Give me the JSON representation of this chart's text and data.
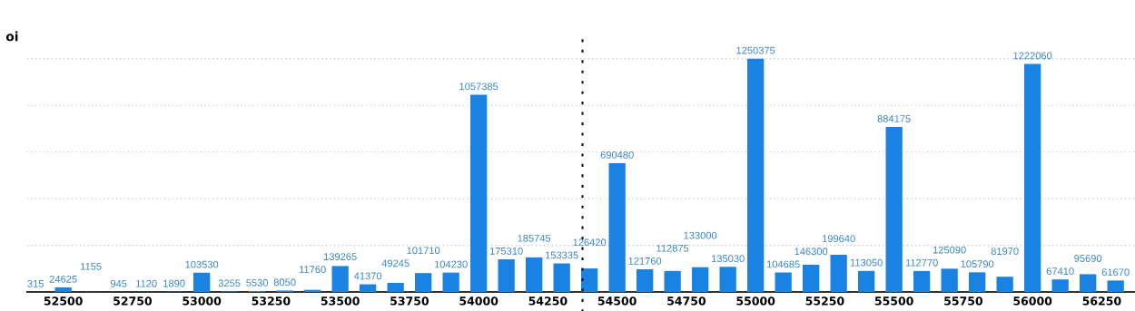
{
  "chart_data": {
    "type": "bar",
    "ylabel": "oi",
    "x": [
      52400,
      52500,
      52600,
      52700,
      52800,
      52900,
      53000,
      53100,
      53200,
      53300,
      53400,
      53500,
      53600,
      53700,
      53800,
      53900,
      54000,
      54100,
      54200,
      54300,
      54400,
      54500,
      54600,
      54700,
      54800,
      54900,
      55000,
      55100,
      55200,
      55300,
      55400,
      55500,
      55600,
      55700,
      55800,
      55900,
      56000,
      56100,
      56200,
      56300
    ],
    "values": [
      315,
      24625,
      1155,
      945,
      1120,
      1890,
      103530,
      3255,
      5530,
      8050,
      11760,
      139265,
      41370,
      49245,
      101710,
      104230,
      1057385,
      175310,
      185745,
      153335,
      126420,
      690480,
      121760,
      112875,
      133000,
      135030,
      1250375,
      104685,
      146300,
      199640,
      113050,
      884175,
      112770,
      125090,
      105790,
      81970,
      1222060,
      67410,
      95690,
      61670
    ],
    "color": "#1a82e2",
    "data_labels": true,
    "xlim": [
      52370,
      56370
    ],
    "xticks": [
      52500,
      52750,
      53000,
      53250,
      53500,
      53750,
      54000,
      54250,
      54500,
      54750,
      55000,
      55250,
      55500,
      55750,
      56000,
      56250
    ],
    "ylim": [
      0,
      1375000
    ],
    "yticks": [
      {
        "value": 250000,
        "label": null
      },
      {
        "value": 500000,
        "label": null
      },
      {
        "value": 750000,
        "label": null
      },
      {
        "value": 1000000,
        "label": null
      },
      {
        "value": 1250000,
        "label": null
      }
    ],
    "tick_labels": "x",
    "grid": "y",
    "legend": false,
    "ref_lines": [
      {
        "axis": "x",
        "value": 54375,
        "label": null,
        "color": "#111111",
        "line_style": "dotted"
      }
    ]
  }
}
